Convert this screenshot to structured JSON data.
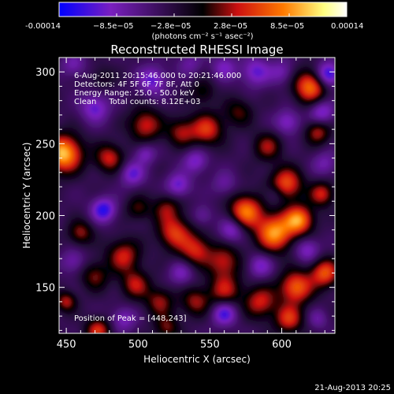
{
  "colorbar": {
    "tick_labels": [
      "-0.00014",
      "−8.5e−05",
      "−2.8e−05",
      "2.8e−05",
      "8.5e−05",
      "0.00014"
    ],
    "unit_label": "(photons cm⁻² s⁻¹ asec⁻²)"
  },
  "chart_data": {
    "type": "heatmap",
    "title": "Reconstructed RHESSI Image",
    "xlabel": "Heliocentric X (arcsec)",
    "ylabel": "Heliocentric Y (arcsec)",
    "xlim": [
      445,
      637
    ],
    "ylim": [
      118,
      310
    ],
    "x_ticks": [
      450,
      500,
      550,
      600
    ],
    "y_ticks": [
      150,
      200,
      250,
      300
    ],
    "value_range": [
      -0.00014,
      0.00014
    ],
    "colormap": [
      "#0000ff",
      "#7a1fbf",
      "#000000",
      "#cc1010",
      "#ff7a00",
      "#ffff80",
      "#ffffff"
    ],
    "annotations": [
      "6-Aug-2011 20:15:46.000 to 20:21:46.000",
      "Detectors: 4F 5F 6F 7F 8F, Att 0",
      "Energy Range: 25.0 - 50.0 keV",
      "Clean     Total counts: 8.12E+03"
    ],
    "peak_label": "Position of Peak = [448,243]",
    "peak": [
      448,
      243
    ],
    "blobs": [
      {
        "x": 448,
        "y": 243,
        "v": 1.0,
        "s": 9
      },
      {
        "x": 595,
        "y": 188,
        "v": 0.9,
        "s": 9
      },
      {
        "x": 612,
        "y": 197,
        "v": 0.85,
        "s": 7
      },
      {
        "x": 620,
        "y": 290,
        "v": 0.8,
        "s": 8
      },
      {
        "x": 603,
        "y": 222,
        "v": 0.7,
        "s": 8
      },
      {
        "x": 575,
        "y": 203,
        "v": 0.8,
        "s": 8
      },
      {
        "x": 548,
        "y": 260,
        "v": 0.6,
        "s": 8
      },
      {
        "x": 505,
        "y": 263,
        "v": 0.55,
        "s": 8
      },
      {
        "x": 530,
        "y": 258,
        "v": 0.45,
        "s": 7
      },
      {
        "x": 525,
        "y": 188,
        "v": 0.6,
        "s": 8
      },
      {
        "x": 540,
        "y": 176,
        "v": 0.55,
        "s": 8
      },
      {
        "x": 560,
        "y": 168,
        "v": 0.5,
        "s": 8
      },
      {
        "x": 520,
        "y": 205,
        "v": 0.4,
        "s": 7
      },
      {
        "x": 500,
        "y": 205,
        "v": 0.35,
        "s": 6
      },
      {
        "x": 480,
        "y": 240,
        "v": 0.55,
        "s": 7
      },
      {
        "x": 590,
        "y": 248,
        "v": 0.45,
        "s": 7
      },
      {
        "x": 570,
        "y": 272,
        "v": 0.35,
        "s": 7
      },
      {
        "x": 625,
        "y": 258,
        "v": 0.5,
        "s": 6
      },
      {
        "x": 610,
        "y": 150,
        "v": 0.75,
        "s": 8
      },
      {
        "x": 630,
        "y": 160,
        "v": 0.7,
        "s": 7
      },
      {
        "x": 585,
        "y": 140,
        "v": 0.55,
        "s": 8
      },
      {
        "x": 605,
        "y": 128,
        "v": 0.6,
        "s": 7
      },
      {
        "x": 560,
        "y": 148,
        "v": 0.5,
        "s": 8
      },
      {
        "x": 540,
        "y": 140,
        "v": 0.45,
        "s": 7
      },
      {
        "x": 490,
        "y": 172,
        "v": 0.55,
        "s": 8
      },
      {
        "x": 498,
        "y": 152,
        "v": 0.5,
        "s": 7
      },
      {
        "x": 470,
        "y": 158,
        "v": 0.4,
        "s": 7
      },
      {
        "x": 460,
        "y": 188,
        "v": 0.45,
        "s": 6
      },
      {
        "x": 515,
        "y": 140,
        "v": 0.45,
        "s": 7
      },
      {
        "x": 472,
        "y": 120,
        "v": 0.6,
        "s": 6
      },
      {
        "x": 450,
        "y": 140,
        "v": 0.5,
        "s": 5
      },
      {
        "x": 628,
        "y": 215,
        "v": 0.55,
        "s": 6
      },
      {
        "x": 520,
        "y": 122,
        "v": 0.4,
        "s": 6
      },
      {
        "x": 545,
        "y": 286,
        "v": 0.3,
        "s": 6
      },
      {
        "x": 475,
        "y": 296,
        "v": 0.2,
        "s": 6
      },
      {
        "x": 632,
        "y": 298,
        "v": -0.7,
        "s": 6
      },
      {
        "x": 476,
        "y": 204,
        "v": -0.6,
        "s": 6
      },
      {
        "x": 560,
        "y": 132,
        "v": -0.55,
        "s": 6
      },
      {
        "x": 565,
        "y": 190,
        "v": -0.45,
        "s": 6
      },
      {
        "x": 496,
        "y": 229,
        "v": -0.45,
        "s": 6
      },
      {
        "x": 510,
        "y": 294,
        "v": -0.45,
        "s": 7
      },
      {
        "x": 582,
        "y": 300,
        "v": -0.45,
        "s": 7
      },
      {
        "x": 528,
        "y": 221,
        "v": -0.45,
        "s": 6
      },
      {
        "x": 470,
        "y": 275,
        "v": -0.45,
        "s": 7
      },
      {
        "x": 505,
        "y": 243,
        "v": -0.35,
        "s": 5
      },
      {
        "x": 618,
        "y": 176,
        "v": -0.4,
        "s": 6
      },
      {
        "x": 585,
        "y": 165,
        "v": -0.4,
        "s": 6
      },
      {
        "x": 540,
        "y": 238,
        "v": -0.4,
        "s": 6
      },
      {
        "x": 628,
        "y": 272,
        "v": -0.45,
        "s": 6
      },
      {
        "x": 604,
        "y": 265,
        "v": -0.4,
        "s": 6
      },
      {
        "x": 455,
        "y": 305,
        "v": -0.3,
        "s": 6
      },
      {
        "x": 560,
        "y": 303,
        "v": -0.35,
        "s": 6
      },
      {
        "x": 530,
        "y": 160,
        "v": -0.35,
        "s": 6
      },
      {
        "x": 600,
        "y": 300,
        "v": -0.3,
        "s": 6
      },
      {
        "x": 490,
        "y": 128,
        "v": -0.35,
        "s": 6
      },
      {
        "x": 455,
        "y": 168,
        "v": -0.3,
        "s": 6
      },
      {
        "x": 630,
        "y": 236,
        "v": -0.3,
        "s": 6
      },
      {
        "x": 560,
        "y": 222,
        "v": -0.25,
        "s": 6
      },
      {
        "x": 595,
        "y": 215,
        "v": -0.25,
        "s": 5
      },
      {
        "x": 545,
        "y": 200,
        "v": -0.25,
        "s": 5
      },
      {
        "x": 625,
        "y": 128,
        "v": -0.25,
        "s": 5
      },
      {
        "x": 536,
        "y": 306,
        "v": -0.25,
        "s": 6
      }
    ]
  },
  "timestamp": "21-Aug-2013 20:25"
}
